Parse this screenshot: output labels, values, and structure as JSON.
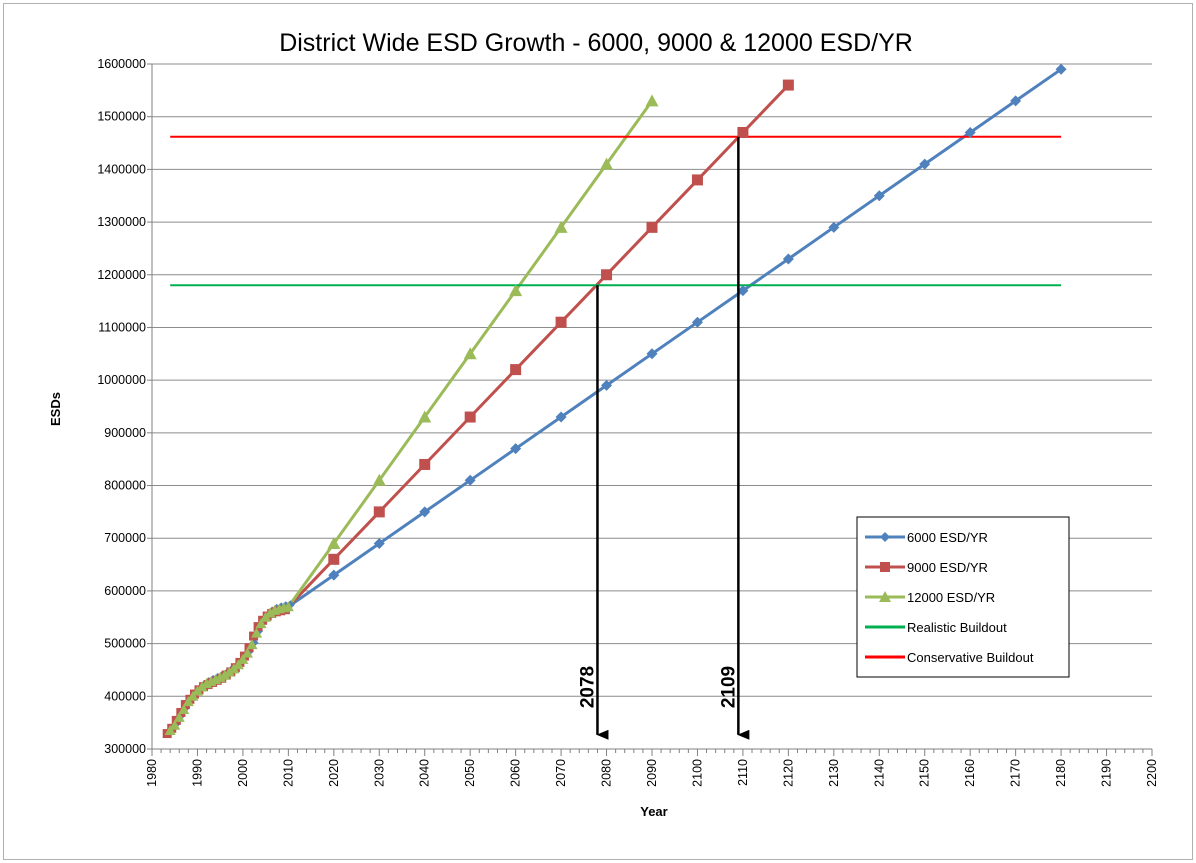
{
  "chart_data": {
    "type": "line",
    "title": "District Wide ESD Growth  -  6000, 9000 & 12000 ESD/YR",
    "xlabel": "Year",
    "ylabel": "ESDs",
    "xlim": [
      1980,
      2200
    ],
    "ylim": [
      300000,
      1600000
    ],
    "x_ticks": [
      1980,
      1990,
      2000,
      2010,
      2020,
      2030,
      2040,
      2050,
      2060,
      2070,
      2080,
      2090,
      2100,
      2110,
      2120,
      2130,
      2140,
      2150,
      2160,
      2170,
      2180,
      2190,
      2200
    ],
    "y_ticks": [
      300000,
      400000,
      500000,
      600000,
      700000,
      800000,
      900000,
      1000000,
      1100000,
      1200000,
      1300000,
      1400000,
      1500000,
      1600000
    ],
    "grid": "horizontal",
    "legend_position": "right",
    "historical": {
      "x": [
        1984,
        1985,
        1986,
        1987,
        1988,
        1989,
        1990,
        1991,
        1992,
        1993,
        1994,
        1995,
        1996,
        1997,
        1998,
        1999,
        2000,
        2001,
        2002,
        2003,
        2004,
        2005,
        2006,
        2007,
        2008,
        2009,
        2010
      ],
      "y": [
        335000,
        345000,
        360000,
        375000,
        390000,
        400000,
        410000,
        418000,
        424000,
        428000,
        432000,
        436000,
        440000,
        446000,
        452000,
        460000,
        470000,
        482000,
        498000,
        520000,
        538000,
        550000,
        558000,
        563000,
        566000,
        568000,
        570000
      ]
    },
    "series": [
      {
        "name": "6000 ESD/YR",
        "color": "#4f81bd",
        "marker": "diamond",
        "x": [
          2020,
          2030,
          2040,
          2050,
          2060,
          2070,
          2080,
          2090,
          2100,
          2110,
          2120,
          2130,
          2140,
          2150,
          2160,
          2170,
          2180
        ],
        "y": [
          630000,
          690000,
          750000,
          810000,
          870000,
          930000,
          990000,
          1050000,
          1110000,
          1170000,
          1230000,
          1290000,
          1350000,
          1410000,
          1470000,
          1530000,
          1590000
        ]
      },
      {
        "name": "9000 ESD/YR",
        "color": "#c0504d",
        "marker": "square",
        "x": [
          2020,
          2030,
          2040,
          2050,
          2060,
          2070,
          2080,
          2090,
          2100,
          2110,
          2120
        ],
        "y": [
          660000,
          750000,
          840000,
          930000,
          1020000,
          1110000,
          1200000,
          1290000,
          1380000,
          1470000,
          1560000
        ]
      },
      {
        "name": "12000 ESD/YR",
        "color": "#9bbb59",
        "marker": "triangle",
        "x": [
          2020,
          2030,
          2040,
          2050,
          2060,
          2070,
          2080,
          2090
        ],
        "y": [
          690000,
          810000,
          930000,
          1050000,
          1170000,
          1290000,
          1410000,
          1530000
        ]
      },
      {
        "name": "Realistic Buildout",
        "color": "#00b050",
        "marker": "none",
        "x": [
          1984,
          2180
        ],
        "y": [
          1180000,
          1180000
        ]
      },
      {
        "name": "Conservative Buildout",
        "color": "#ff0000",
        "marker": "none",
        "x": [
          1984,
          2180
        ],
        "y": [
          1462000,
          1462000
        ]
      }
    ],
    "annotations": [
      {
        "label": "2078",
        "x": 2078,
        "y_from": 1180000,
        "y_to": 308000
      },
      {
        "label": "2109",
        "x": 2109,
        "y_from": 1462000,
        "y_to": 308000
      }
    ]
  }
}
